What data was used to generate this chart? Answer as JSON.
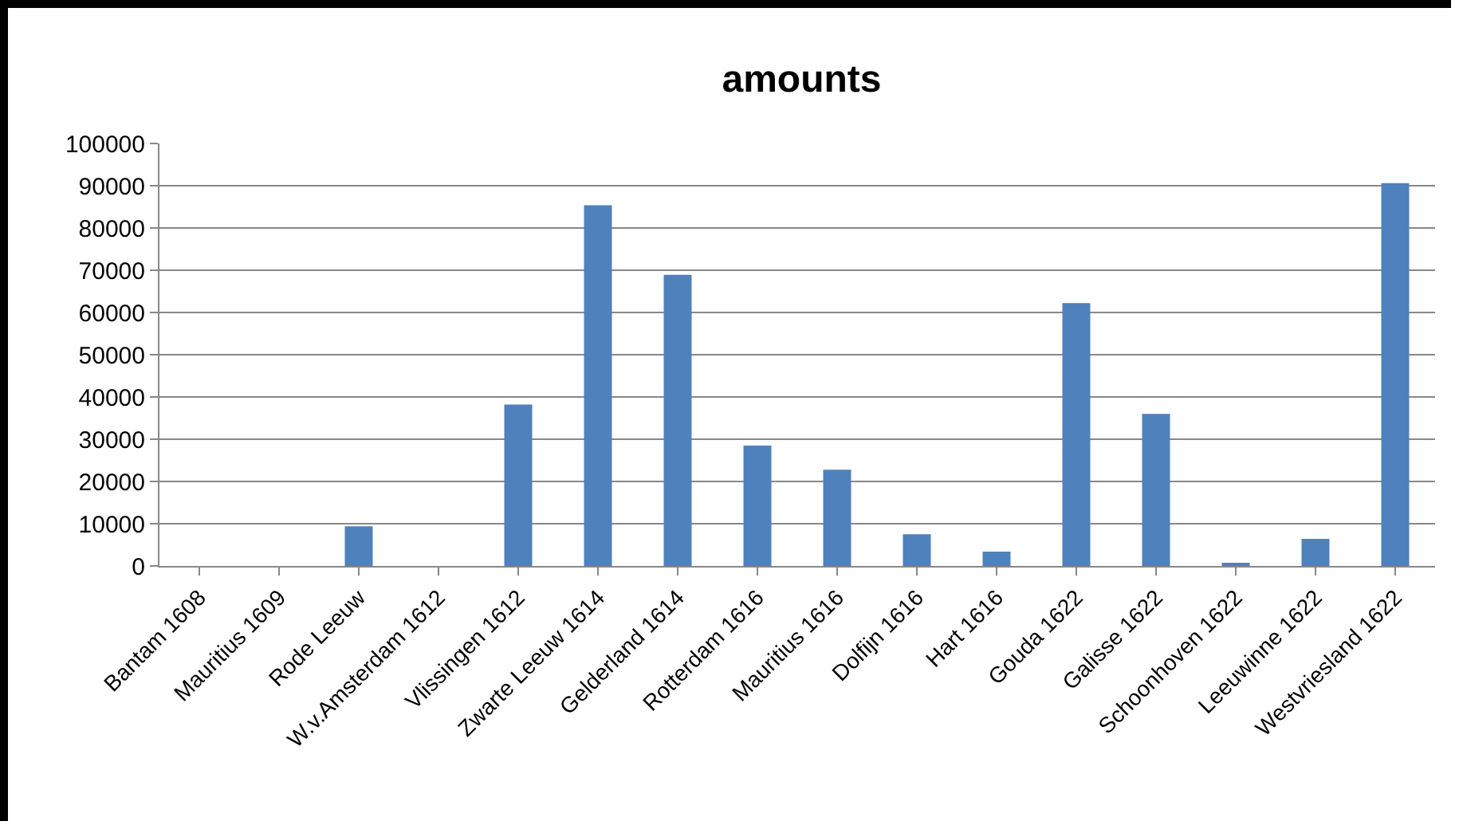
{
  "chart_data": {
    "type": "bar",
    "title": "amounts",
    "categories": [
      "Bantam 1608",
      "Mauritius 1609",
      "Rode Leeuw",
      "W.v.Amsterdam 1612",
      "Vlissingen 1612",
      "Zwarte Leeuw 1614",
      "Gelderland 1614",
      "Rotterdam 1616",
      "Mauritius 1616",
      "Dolfijn 1616",
      "Hart 1616",
      "Gouda 1622",
      "Galisse 1622",
      "Schoonhoven 1622",
      "Leeuwinne 1622",
      "Westvriesland 1622"
    ],
    "values": [
      0,
      0,
      9400,
      0,
      38200,
      85400,
      68900,
      28500,
      22800,
      7500,
      3400,
      62200,
      36000,
      700,
      6400,
      90600
    ],
    "color": "#4f81bd",
    "ylim": [
      0,
      100000
    ],
    "yticks": [
      0,
      10000,
      20000,
      30000,
      40000,
      50000,
      60000,
      70000,
      80000,
      90000,
      100000
    ],
    "grid": "y"
  }
}
